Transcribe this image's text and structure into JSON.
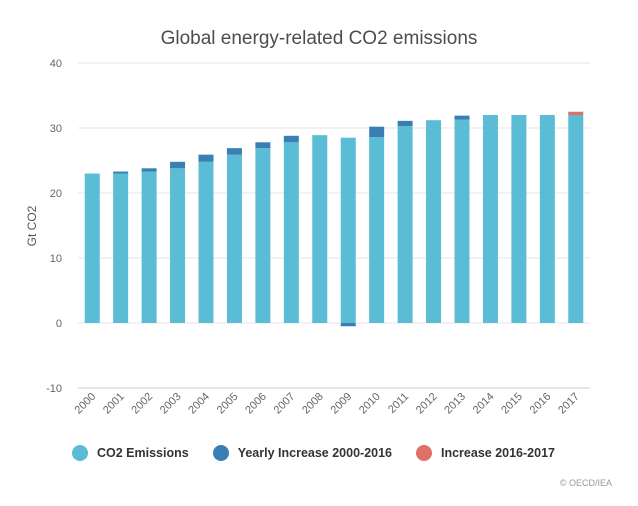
{
  "chart_data": {
    "type": "bar",
    "stacked": true,
    "title": "Global energy-related CO2 emissions",
    "ylabel": "Gt CO2",
    "xlabel": "",
    "ylim": [
      -10,
      40
    ],
    "yticks": [
      -10,
      0,
      10,
      20,
      30,
      40
    ],
    "grid": true,
    "legend_position": "bottom",
    "categories": [
      "2000",
      "2001",
      "2002",
      "2003",
      "2004",
      "2005",
      "2006",
      "2007",
      "2008",
      "2009",
      "2010",
      "2011",
      "2012",
      "2013",
      "2014",
      "2015",
      "2016",
      "2017"
    ],
    "series": [
      {
        "name": "CO2 Emissions",
        "color": "#5bbcd6",
        "values": [
          23.0,
          23.0,
          23.3,
          23.8,
          24.8,
          25.9,
          26.9,
          27.8,
          28.9,
          28.5,
          28.6,
          30.3,
          31.2,
          31.3,
          32.0,
          32.0,
          32.0,
          32.0
        ]
      },
      {
        "name": "Yearly Increase 2000-2016",
        "color": "#3a7fb3",
        "values": [
          0,
          0.3,
          0.5,
          1.0,
          1.1,
          1.0,
          0.9,
          1.0,
          0,
          -0.5,
          1.6,
          0.8,
          0,
          0.6,
          0,
          0,
          0,
          0
        ]
      },
      {
        "name": "Increase 2016-2017",
        "color": "#e07066",
        "values": [
          0,
          0,
          0,
          0,
          0,
          0,
          0,
          0,
          0,
          0,
          0,
          0,
          0,
          0,
          0,
          0,
          0,
          0.5
        ]
      }
    ]
  },
  "credit": "© OECD/IEA"
}
